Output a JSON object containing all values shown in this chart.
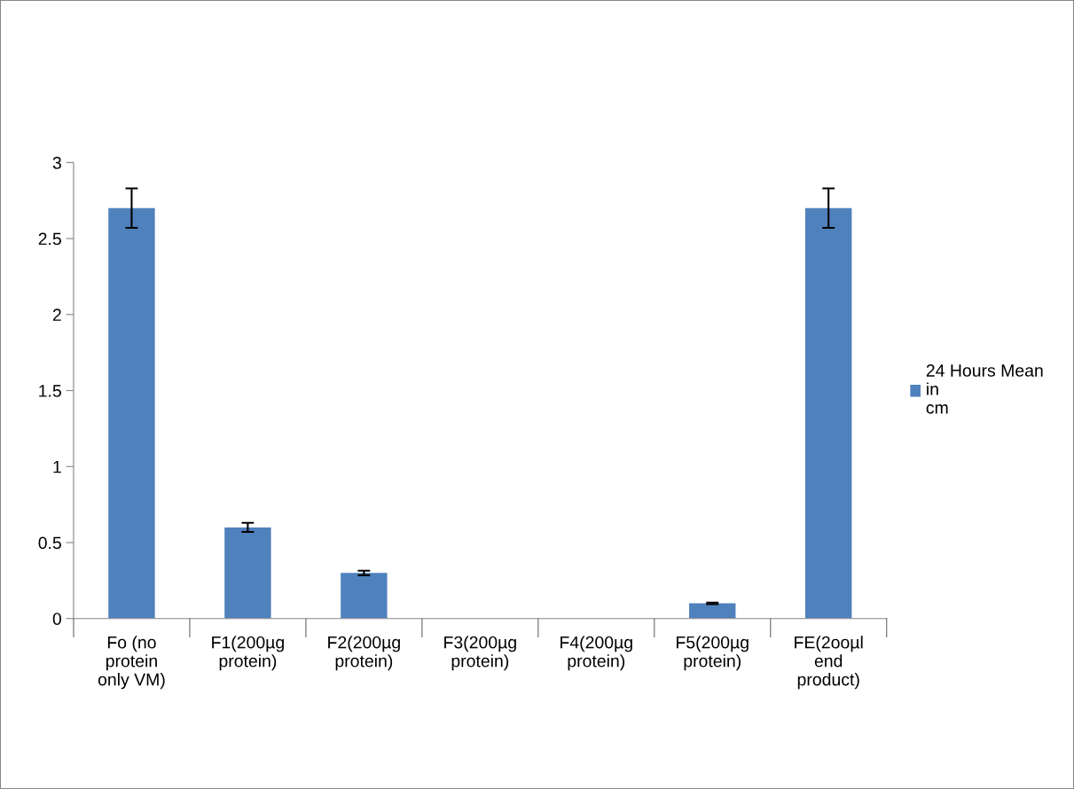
{
  "chart_data": {
    "type": "bar",
    "categories": [
      "Fo (no\nprotein\nonly VM)",
      "F1(200µg\nprotein)",
      "F2(200µg\nprotein)",
      "F3(200µg\nprotein)",
      "F4(200µg\nprotein)",
      "F5(200µg\nprotein)",
      "FE(2ooµl\nend\nproduct)"
    ],
    "series": [
      {
        "name": "24 Hours Mean\nin\ncm",
        "color": "#4f81bd",
        "values": [
          2.7,
          0.6,
          0.3,
          0,
          0,
          0.1,
          2.7
        ],
        "errors": [
          0.13,
          0.03,
          0.015,
          null,
          null,
          0.005,
          0.13
        ]
      }
    ],
    "ylim": [
      0,
      3
    ],
    "yticks": [
      0,
      0.5,
      1,
      1.5,
      2,
      2.5,
      3
    ],
    "grid": false,
    "legend": "right"
  }
}
